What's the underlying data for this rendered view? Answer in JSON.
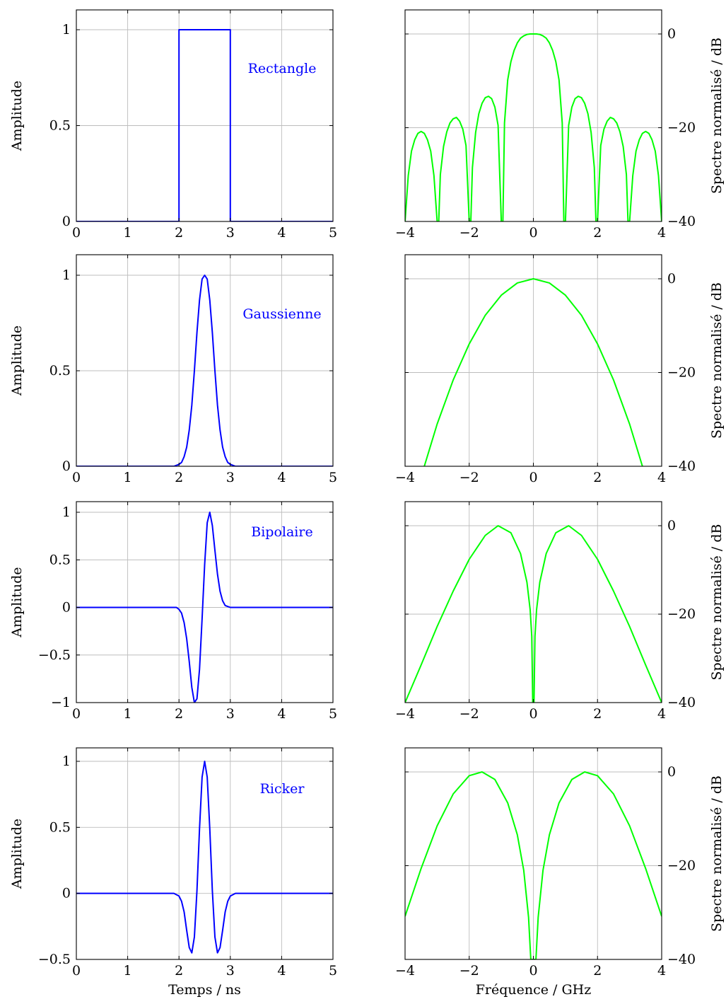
{
  "chart_data": [
    {
      "type": "line",
      "panel": "time",
      "annotation": "Rectangle",
      "ylabel": "Amplitude",
      "xlabel": "",
      "xlim": [
        0,
        5
      ],
      "ylim": [
        0,
        1.1
      ],
      "xticks": [
        "0",
        "1",
        "2",
        "3",
        "4",
        "5"
      ],
      "yticks": [
        "0",
        "0.5",
        "1"
      ],
      "yticks_values": [
        0,
        0.5,
        1
      ],
      "grid": true,
      "series": [
        {
          "color": "#0000ff",
          "x": [
            0,
            2,
            2,
            3,
            3,
            5
          ],
          "y": [
            0,
            0,
            1,
            1,
            0,
            0
          ]
        }
      ]
    },
    {
      "type": "line",
      "panel": "freq",
      "annotation": "",
      "ylabel": "Spectre normalisé / dB",
      "xlabel": "",
      "xlim": [
        -4,
        4
      ],
      "ylim": [
        -40,
        5
      ],
      "xticks": [
        "−4",
        "−2",
        "0",
        "2",
        "4"
      ],
      "yticks": [
        "−40",
        "−20",
        "0"
      ],
      "yticks_values": [
        -40,
        -20,
        0
      ],
      "grid": true,
      "series": [
        {
          "color": "#00ff00",
          "x": [
            -4,
            -3.9,
            -3.8,
            -3.7,
            -3.6,
            -3.5,
            -3.4,
            -3.3,
            -3.2,
            -3.1,
            -3.0,
            -2.95,
            -2.9,
            -2.8,
            -2.7,
            -2.6,
            -2.5,
            -2.4,
            -2.3,
            -2.2,
            -2.1,
            -2.0,
            -1.95,
            -1.9,
            -1.8,
            -1.7,
            -1.6,
            -1.5,
            -1.4,
            -1.3,
            -1.2,
            -1.1,
            -1.0,
            -0.95,
            -0.9,
            -0.8,
            -0.7,
            -0.6,
            -0.5,
            -0.4,
            -0.3,
            -0.2,
            -0.1,
            0,
            0.1,
            0.2,
            0.3,
            0.4,
            0.5,
            0.6,
            0.7,
            0.8,
            0.9,
            0.95,
            1.0,
            1.1,
            1.2,
            1.3,
            1.4,
            1.5,
            1.6,
            1.7,
            1.8,
            1.9,
            1.95,
            2.0,
            2.1,
            2.2,
            2.3,
            2.4,
            2.5,
            2.6,
            2.7,
            2.8,
            2.9,
            2.95,
            3.0,
            3.1,
            3.2,
            3.3,
            3.4,
            3.5,
            3.6,
            3.7,
            3.8,
            3.9,
            4.0
          ],
          "y": [
            -40,
            -30.2,
            -25.0,
            -22.6,
            -21.2,
            -20.8,
            -21.2,
            -22.6,
            -25.0,
            -30.2,
            -40,
            -40,
            -30.0,
            -24.0,
            -20.9,
            -19.0,
            -18.1,
            -17.8,
            -18.6,
            -20.3,
            -23.8,
            -40,
            -40,
            -28.5,
            -21.0,
            -17.0,
            -14.8,
            -13.6,
            -13.3,
            -13.8,
            -15.6,
            -19.5,
            -40,
            -40,
            -19.0,
            -9.8,
            -5.9,
            -3.5,
            -1.9,
            -0.9,
            -0.4,
            -0.1,
            0.0,
            0.0,
            0.0,
            -0.1,
            -0.4,
            -0.9,
            -1.9,
            -3.5,
            -5.9,
            -9.8,
            -19.0,
            -40,
            -40,
            -19.5,
            -15.6,
            -13.8,
            -13.3,
            -13.6,
            -14.8,
            -17.0,
            -21.0,
            -28.5,
            -40,
            -40,
            -23.8,
            -20.3,
            -18.6,
            -17.8,
            -18.1,
            -19.0,
            -20.9,
            -24.0,
            -30.0,
            -40,
            -40,
            -30.2,
            -25.0,
            -22.6,
            -21.2,
            -20.8,
            -21.2,
            -22.6,
            -25.0,
            -30.2,
            -40
          ]
        }
      ]
    },
    {
      "type": "line",
      "panel": "time",
      "annotation": "Gaussienne",
      "ylabel": "Amplitude",
      "xlabel": "",
      "xlim": [
        0,
        5
      ],
      "ylim": [
        0,
        1.1
      ],
      "xticks": [
        "0",
        "1",
        "2",
        "3",
        "4",
        "5"
      ],
      "yticks": [
        "0",
        "0.5",
        "1"
      ],
      "yticks_values": [
        0,
        0.5,
        1
      ],
      "grid": true,
      "series": [
        {
          "color": "#0000ff",
          "x": [
            0,
            1.9,
            2.0,
            2.05,
            2.1,
            2.15,
            2.2,
            2.25,
            2.3,
            2.35,
            2.4,
            2.45,
            2.5,
            2.55,
            2.6,
            2.65,
            2.7,
            2.75,
            2.8,
            2.85,
            2.9,
            2.95,
            3.0,
            3.1,
            5
          ],
          "y": [
            0,
            0,
            0.01,
            0.02,
            0.05,
            0.1,
            0.19,
            0.32,
            0.5,
            0.7,
            0.87,
            0.98,
            1.0,
            0.98,
            0.87,
            0.7,
            0.5,
            0.32,
            0.19,
            0.1,
            0.05,
            0.02,
            0.01,
            0,
            0
          ]
        }
      ]
    },
    {
      "type": "line",
      "panel": "freq",
      "annotation": "",
      "ylabel": "Spectre normalisé / dB",
      "xlabel": "",
      "xlim": [
        -4,
        4
      ],
      "ylim": [
        -40,
        5
      ],
      "xticks": [
        "−4",
        "−2",
        "0",
        "2",
        "4"
      ],
      "yticks": [
        "−40",
        "−20",
        "0"
      ],
      "yticks_values": [
        -40,
        -20,
        0
      ],
      "grid": true,
      "series": [
        {
          "color": "#00ff00",
          "x": [
            -3.4,
            -3.0,
            -2.5,
            -2.0,
            -1.5,
            -1.0,
            -0.5,
            0,
            0.5,
            1.0,
            1.5,
            2.0,
            2.5,
            3.0,
            3.4
          ],
          "y": [
            -40,
            -31.0,
            -21.6,
            -13.9,
            -7.8,
            -3.5,
            -0.9,
            0,
            -0.9,
            -3.5,
            -7.8,
            -13.9,
            -21.6,
            -31.0,
            -40
          ]
        }
      ]
    },
    {
      "type": "line",
      "panel": "time",
      "annotation": "Bipolaire",
      "ylabel": "Amplitude",
      "xlabel": "",
      "xlim": [
        0,
        5
      ],
      "ylim": [
        -1.1,
        1.1
      ],
      "xticks": [
        "0",
        "1",
        "2",
        "3",
        "4",
        "5"
      ],
      "yticks": [
        "−1",
        "−0.5",
        "0",
        "0.5",
        "1"
      ],
      "yticks_values": [
        -1,
        -0.5,
        0,
        0.5,
        1
      ],
      "grid": true,
      "series": [
        {
          "color": "#0000ff",
          "x": [
            0,
            1.95,
            2.0,
            2.05,
            2.1,
            2.15,
            2.2,
            2.25,
            2.3,
            2.35,
            2.4,
            2.45,
            2.5,
            2.55,
            2.6,
            2.65,
            2.7,
            2.75,
            2.8,
            2.85,
            2.9,
            2.95,
            3.0,
            3.05,
            5
          ],
          "y": [
            0,
            0,
            -0.02,
            -0.06,
            -0.16,
            -0.33,
            -0.57,
            -0.84,
            -1.0,
            -0.96,
            -0.65,
            -0.12,
            0.45,
            0.89,
            1.0,
            0.86,
            0.6,
            0.35,
            0.17,
            0.07,
            0.02,
            0.01,
            0,
            0,
            0
          ]
        }
      ]
    },
    {
      "type": "line",
      "panel": "freq",
      "annotation": "",
      "ylabel": "Spectre normalisé / dB",
      "xlabel": "",
      "xlim": [
        -4,
        4
      ],
      "ylim": [
        -40,
        5
      ],
      "xticks": [
        "−4",
        "−2",
        "0",
        "2",
        "4"
      ],
      "yticks": [
        "−40",
        "−20",
        "0"
      ],
      "yticks_values": [
        -40,
        -20,
        0
      ],
      "grid": true,
      "series": [
        {
          "color": "#00ff00",
          "x": [
            -4,
            -3.5,
            -3.0,
            -2.5,
            -2.0,
            -1.5,
            -1.1,
            -0.7,
            -0.4,
            -0.2,
            -0.1,
            -0.05,
            -0.02,
            0.02,
            0.05,
            0.1,
            0.2,
            0.4,
            0.7,
            1.1,
            1.5,
            2.0,
            2.5,
            3.0,
            3.5,
            4
          ],
          "y": [
            -40,
            -31.5,
            -22.8,
            -14.8,
            -7.6,
            -2.2,
            0,
            -1.6,
            -6.3,
            -12.8,
            -19.0,
            -25.0,
            -40,
            -40,
            -25.0,
            -19.0,
            -12.8,
            -6.3,
            -1.6,
            0,
            -2.2,
            -7.6,
            -14.8,
            -22.8,
            -31.5,
            -40
          ]
        }
      ]
    },
    {
      "type": "line",
      "panel": "time",
      "annotation": "Ricker",
      "ylabel": "Amplitude",
      "xlabel": "Temps / ns",
      "xlim": [
        0,
        5
      ],
      "ylim": [
        -0.5,
        1.1
      ],
      "xticks": [
        "0",
        "1",
        "2",
        "3",
        "4",
        "5"
      ],
      "yticks": [
        "−0.5",
        "0",
        "0.5",
        "1"
      ],
      "yticks_values": [
        -0.5,
        0,
        0.5,
        1
      ],
      "grid": true,
      "series": [
        {
          "color": "#0000ff",
          "x": [
            0,
            1.9,
            2.0,
            2.05,
            2.1,
            2.15,
            2.2,
            2.25,
            2.3,
            2.35,
            2.4,
            2.45,
            2.5,
            2.55,
            2.6,
            2.65,
            2.7,
            2.75,
            2.8,
            2.85,
            2.9,
            2.95,
            3.0,
            3.1,
            5
          ],
          "y": [
            0,
            0,
            -0.02,
            -0.06,
            -0.14,
            -0.28,
            -0.41,
            -0.45,
            -0.33,
            0.02,
            0.49,
            0.88,
            1.0,
            0.88,
            0.49,
            0.02,
            -0.33,
            -0.45,
            -0.41,
            -0.28,
            -0.14,
            -0.06,
            -0.02,
            0,
            0
          ]
        }
      ]
    },
    {
      "type": "line",
      "panel": "freq",
      "annotation": "",
      "ylabel": "Spectre normalisé / dB",
      "xlabel": "Fréquence / GHz",
      "xlim": [
        -4,
        4
      ],
      "ylim": [
        -40,
        5
      ],
      "xticks": [
        "−4",
        "−2",
        "0",
        "2",
        "4"
      ],
      "yticks": [
        "−40",
        "−20",
        "0"
      ],
      "yticks_values": [
        -40,
        -20,
        0
      ],
      "grid": true,
      "series": [
        {
          "color": "#00ff00",
          "x": [
            -4,
            -3.5,
            -3.0,
            -2.5,
            -2.0,
            -1.6,
            -1.2,
            -0.8,
            -0.5,
            -0.3,
            -0.15,
            -0.08,
            0.08,
            0.15,
            0.3,
            0.5,
            0.8,
            1.2,
            1.6,
            2.0,
            2.5,
            3.0,
            3.5,
            4
          ],
          "y": [
            -30.8,
            -20.6,
            -11.5,
            -4.7,
            -0.8,
            0,
            -1.6,
            -6.6,
            -13.4,
            -21.0,
            -31.0,
            -40,
            -40,
            -31.0,
            -21.0,
            -13.4,
            -6.6,
            -1.6,
            0,
            -0.8,
            -4.7,
            -11.5,
            -20.6,
            -30.8
          ]
        }
      ]
    }
  ]
}
